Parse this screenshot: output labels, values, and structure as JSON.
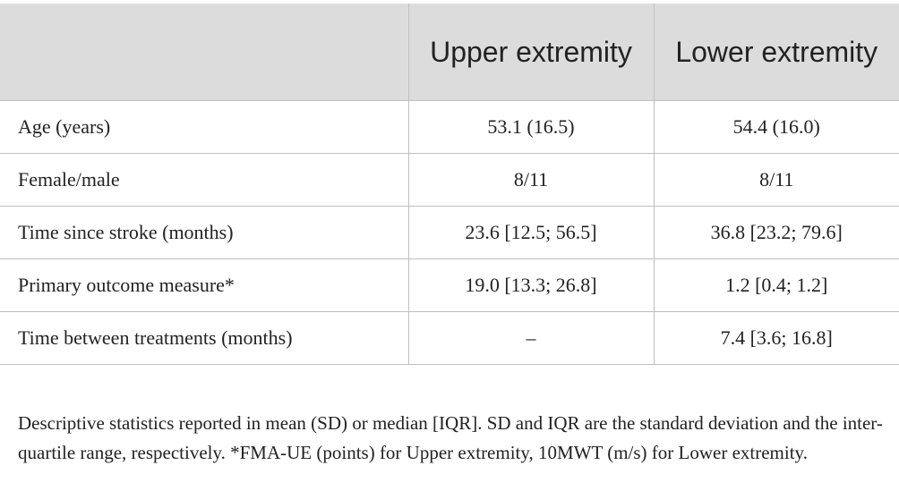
{
  "table": {
    "header": {
      "col1": "",
      "col2": "Upper extremity",
      "col3": "Lower extremity"
    },
    "rows": [
      {
        "label": "Age (years)",
        "upper": "53.1 (16.5)",
        "lower": "54.4 (16.0)"
      },
      {
        "label": "Female/male",
        "upper": "8/11",
        "lower": "8/11"
      },
      {
        "label": "Time since stroke (months)",
        "upper": "23.6 [12.5; 56.5]",
        "lower": "36.8 [23.2; 79.6]"
      },
      {
        "label": "Primary outcome measure*",
        "upper": "19.0 [13.3; 26.8]",
        "lower": "1.2 [0.4; 1.2]"
      },
      {
        "label": "Time between treatments (months)",
        "upper": "–",
        "lower": "7.4 [3.6; 16.8]"
      }
    ]
  },
  "footnote": "Descriptive statistics reported in mean (SD) or median [IQR]. SD and IQR are the standard deviation and the inter-quartile range, respectively. *FMA-UE (points) for Upper extremity, 10MWT (m/s) for Lower extremity.",
  "colors": {
    "header_background": "#dcdcdc",
    "grid_line": "#bfbfbf",
    "text": "#222222"
  }
}
